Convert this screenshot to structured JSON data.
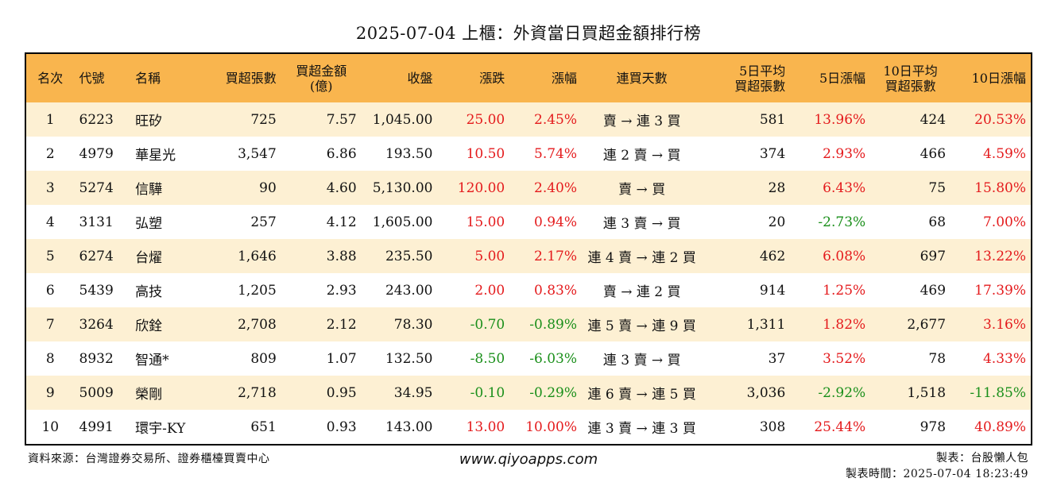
{
  "title": "2025-07-04 上櫃：外資當日買超金額排行榜",
  "headers": [
    "名次",
    "代號",
    "名稱",
    "買超張數",
    "買超金額\n(億)",
    "收盤",
    "漲跌",
    "漲幅",
    "連買天數",
    "5日平均\n買超張數",
    "5日漲幅",
    "10日平均\n買超張數",
    "10日漲幅"
  ],
  "rows": [
    [
      "1",
      "6223",
      "旺矽",
      "725",
      "7.57",
      "1,045.00",
      "25.00",
      "2.45%",
      "賣 → 連 3 買",
      "581",
      "13.96%",
      "424",
      "20.53%"
    ],
    [
      "2",
      "4979",
      "華星光",
      "3,547",
      "6.86",
      "193.50",
      "10.50",
      "5.74%",
      "連 2 賣 → 買",
      "374",
      "2.93%",
      "466",
      "4.59%"
    ],
    [
      "3",
      "5274",
      "信驊",
      "90",
      "4.60",
      "5,130.00",
      "120.00",
      "2.40%",
      "賣 → 買",
      "28",
      "6.43%",
      "75",
      "15.80%"
    ],
    [
      "4",
      "3131",
      "弘塑",
      "257",
      "4.12",
      "1,605.00",
      "15.00",
      "0.94%",
      "連 3 賣 → 買",
      "20",
      "-2.73%",
      "68",
      "7.00%"
    ],
    [
      "5",
      "6274",
      "台燿",
      "1,646",
      "3.88",
      "235.50",
      "5.00",
      "2.17%",
      "連 4 賣 → 連 2 買",
      "462",
      "6.08%",
      "697",
      "13.22%"
    ],
    [
      "6",
      "5439",
      "高技",
      "1,205",
      "2.93",
      "243.00",
      "2.00",
      "0.83%",
      "賣 → 連 2 買",
      "914",
      "1.25%",
      "469",
      "17.39%"
    ],
    [
      "7",
      "3264",
      "欣銓",
      "2,708",
      "2.12",
      "78.30",
      "-0.70",
      "-0.89%",
      "連 5 賣 → 連 9 買",
      "1,311",
      "1.82%",
      "2,677",
      "3.16%"
    ],
    [
      "8",
      "8932",
      "智通*",
      "809",
      "1.07",
      "132.50",
      "-8.50",
      "-6.03%",
      "連 3 賣 → 買",
      "37",
      "3.52%",
      "78",
      "4.33%"
    ],
    [
      "9",
      "5009",
      "榮剛",
      "2,718",
      "0.95",
      "34.95",
      "-0.10",
      "-0.29%",
      "連 6 賣 → 連 5 買",
      "3,036",
      "-2.92%",
      "1,518",
      "-11.85%"
    ],
    [
      "10",
      "4991",
      "環宇-KY",
      "651",
      "0.93",
      "143.00",
      "13.00",
      "10.00%",
      "連 3 賣 → 連 3 買",
      "308",
      "25.44%",
      "978",
      "40.89%"
    ]
  ],
  "footer": {
    "source": "資料來源：台灣證券交易所、證券櫃檯買賣中心",
    "website": "www.qiyoapps.com",
    "maker": "製表：台股懶人包",
    "time": "製表時間：2025-07-04 18:23:49"
  },
  "colors": {
    "header_bg": "#f9b54e",
    "odd_row_bg": "#fdf0d3",
    "up": "#e41a1c",
    "down": "#1a8f1a"
  }
}
